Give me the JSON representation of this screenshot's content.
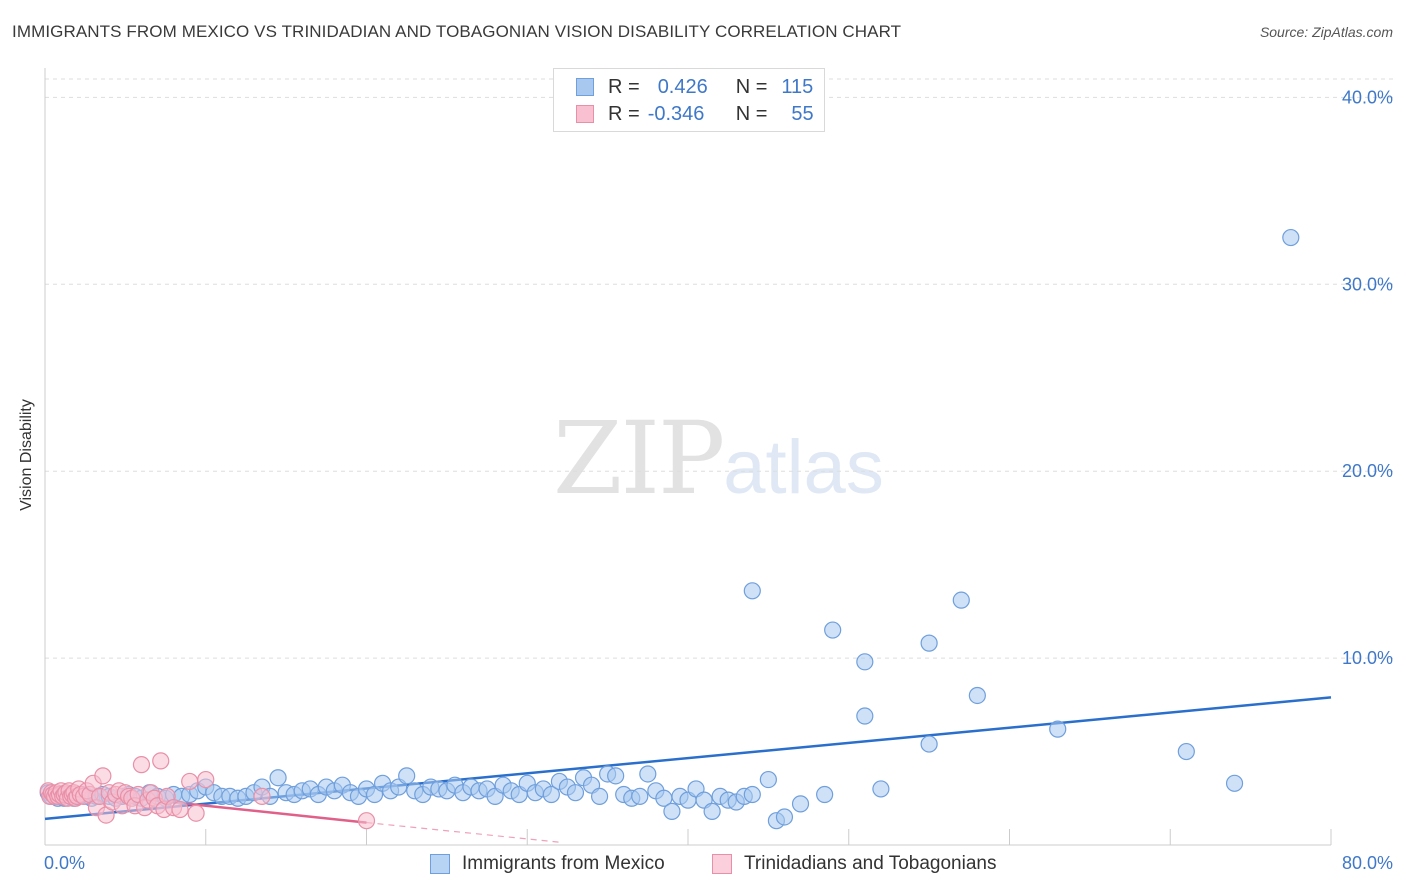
{
  "title": "IMMIGRANTS FROM MEXICO VS TRINIDADIAN AND TOBAGONIAN VISION DISABILITY CORRELATION CHART",
  "source": "Source: ZipAtlas.com",
  "watermark": {
    "zip": "ZIP",
    "atlas": "atlas"
  },
  "legend": {
    "rows": [
      {
        "r_label": "R =",
        "r_value": "0.426",
        "n_label": "N =",
        "n_value": "115",
        "color": "#a8c8f0",
        "border": "#6f9fdc"
      },
      {
        "r_label": "R =",
        "r_value": "-0.346",
        "n_label": "N =",
        "n_value": "55",
        "color": "#f8c0d0",
        "border": "#e890a8"
      }
    ]
  },
  "bottom_legend": [
    {
      "label": "Immigrants from Mexico",
      "color": "#b8d4f4",
      "border": "#6f9fdc"
    },
    {
      "label": "Trinidadians and Tobagonians",
      "color": "#fbd0dc",
      "border": "#e890a8"
    }
  ],
  "chart_data": {
    "type": "scatter",
    "title": "IMMIGRANTS FROM MEXICO VS TRINIDADIAN AND TOBAGONIAN VISION DISABILITY CORRELATION CHART",
    "xlabel": "",
    "ylabel": "Vision Disability",
    "xlim": [
      0,
      80
    ],
    "ylim": [
      0,
      42
    ],
    "y_ticks": [
      10,
      20,
      30,
      40
    ],
    "y_tick_labels": [
      "10.0%",
      "20.0%",
      "30.0%",
      "40.0%"
    ],
    "x_tick_labels": [
      "0.0%",
      "80.0%"
    ],
    "grid": true,
    "series": [
      {
        "name": "Immigrants from Mexico",
        "color": "#a8c8f0",
        "stroke": "#6f9fdc",
        "trend": {
          "x": [
            0,
            80
          ],
          "y": [
            1.4,
            7.9
          ],
          "color": "#2a6fcc"
        },
        "points": [
          [
            0.2,
            2.8
          ],
          [
            0.4,
            2.6
          ],
          [
            0.6,
            2.7
          ],
          [
            0.8,
            2.5
          ],
          [
            1.0,
            2.6
          ],
          [
            1.2,
            2.5
          ],
          [
            1.4,
            2.7
          ],
          [
            1.6,
            2.6
          ],
          [
            1.8,
            2.5
          ],
          [
            2.0,
            2.6
          ],
          [
            2.3,
            2.7
          ],
          [
            2.6,
            2.6
          ],
          [
            2.9,
            2.5
          ],
          [
            3.2,
            2.6
          ],
          [
            3.6,
            2.7
          ],
          [
            4.0,
            2.6
          ],
          [
            4.4,
            2.5
          ],
          [
            4.8,
            2.6
          ],
          [
            5.2,
            2.7
          ],
          [
            5.6,
            2.6
          ],
          [
            6.0,
            2.5
          ],
          [
            6.5,
            2.8
          ],
          [
            7.0,
            2.6
          ],
          [
            7.5,
            2.5
          ],
          [
            8.0,
            2.7
          ],
          [
            8.5,
            2.6
          ],
          [
            9.0,
            2.7
          ],
          [
            9.5,
            2.9
          ],
          [
            10.0,
            3.1
          ],
          [
            10.5,
            2.8
          ],
          [
            11.0,
            2.6
          ],
          [
            11.5,
            2.6
          ],
          [
            12.0,
            2.5
          ],
          [
            12.5,
            2.6
          ],
          [
            13.0,
            2.8
          ],
          [
            13.5,
            3.1
          ],
          [
            14.0,
            2.6
          ],
          [
            14.5,
            3.6
          ],
          [
            15.0,
            2.8
          ],
          [
            15.5,
            2.7
          ],
          [
            16.0,
            2.9
          ],
          [
            16.5,
            3.0
          ],
          [
            17.0,
            2.7
          ],
          [
            17.5,
            3.1
          ],
          [
            18.0,
            2.9
          ],
          [
            18.5,
            3.2
          ],
          [
            19.0,
            2.8
          ],
          [
            19.5,
            2.6
          ],
          [
            20.0,
            3.0
          ],
          [
            20.5,
            2.7
          ],
          [
            21.0,
            3.3
          ],
          [
            21.5,
            2.9
          ],
          [
            22.0,
            3.1
          ],
          [
            22.5,
            3.7
          ],
          [
            23.0,
            2.9
          ],
          [
            23.5,
            2.7
          ],
          [
            24.0,
            3.1
          ],
          [
            24.5,
            3.0
          ],
          [
            25.0,
            2.9
          ],
          [
            25.5,
            3.2
          ],
          [
            26.0,
            2.8
          ],
          [
            26.5,
            3.1
          ],
          [
            27.0,
            2.9
          ],
          [
            27.5,
            3.0
          ],
          [
            28.0,
            2.6
          ],
          [
            28.5,
            3.2
          ],
          [
            29.0,
            2.9
          ],
          [
            29.5,
            2.7
          ],
          [
            30.0,
            3.3
          ],
          [
            30.5,
            2.8
          ],
          [
            31.0,
            3.0
          ],
          [
            31.5,
            2.7
          ],
          [
            32.0,
            3.4
          ],
          [
            32.5,
            3.1
          ],
          [
            33.0,
            2.8
          ],
          [
            33.5,
            3.6
          ],
          [
            34.0,
            3.2
          ],
          [
            34.5,
            2.6
          ],
          [
            35.0,
            3.8
          ],
          [
            35.5,
            3.7
          ],
          [
            36.0,
            2.7
          ],
          [
            36.5,
            2.5
          ],
          [
            37.0,
            2.6
          ],
          [
            37.5,
            3.8
          ],
          [
            38.0,
            2.9
          ],
          [
            38.5,
            2.5
          ],
          [
            39.0,
            1.8
          ],
          [
            39.5,
            2.6
          ],
          [
            40.0,
            2.4
          ],
          [
            40.5,
            3.0
          ],
          [
            41.0,
            2.4
          ],
          [
            41.5,
            1.8
          ],
          [
            42.0,
            2.6
          ],
          [
            42.5,
            2.4
          ],
          [
            43.0,
            2.3
          ],
          [
            43.5,
            2.6
          ],
          [
            44.0,
            2.7
          ],
          [
            45.0,
            3.5
          ],
          [
            45.5,
            1.3
          ],
          [
            46.0,
            1.5
          ],
          [
            44.0,
            13.6
          ],
          [
            49.0,
            11.5
          ],
          [
            51.0,
            9.8
          ],
          [
            55.0,
            10.8
          ],
          [
            57.0,
            13.1
          ],
          [
            58.0,
            8.0
          ],
          [
            63.0,
            6.2
          ],
          [
            71.0,
            5.0
          ],
          [
            51.0,
            6.9
          ],
          [
            55.0,
            5.4
          ],
          [
            77.5,
            32.5
          ],
          [
            74.0,
            3.3
          ],
          [
            52.0,
            3.0
          ],
          [
            47.0,
            2.2
          ],
          [
            48.5,
            2.7
          ]
        ]
      },
      {
        "name": "Trinidadians and Tobagonians",
        "color": "#f8c0d0",
        "stroke": "#e890a8",
        "trend": {
          "x": [
            0,
            20
          ],
          "y": [
            3.0,
            1.2
          ],
          "color": "#e0608a"
        },
        "trend_ext": {
          "x": [
            20,
            32
          ],
          "y": [
            1.2,
            0.15
          ]
        },
        "points": [
          [
            0.2,
            2.9
          ],
          [
            0.3,
            2.6
          ],
          [
            0.4,
            2.8
          ],
          [
            0.5,
            2.7
          ],
          [
            0.6,
            2.6
          ],
          [
            0.7,
            2.8
          ],
          [
            0.8,
            2.6
          ],
          [
            0.9,
            2.7
          ],
          [
            1.0,
            2.9
          ],
          [
            1.1,
            2.6
          ],
          [
            1.2,
            2.7
          ],
          [
            1.3,
            2.8
          ],
          [
            1.4,
            2.5
          ],
          [
            1.5,
            2.9
          ],
          [
            1.6,
            2.6
          ],
          [
            1.7,
            2.7
          ],
          [
            1.8,
            2.8
          ],
          [
            1.9,
            2.5
          ],
          [
            2.0,
            2.6
          ],
          [
            2.1,
            3.0
          ],
          [
            2.2,
            2.7
          ],
          [
            2.4,
            2.6
          ],
          [
            2.6,
            2.9
          ],
          [
            2.8,
            2.7
          ],
          [
            3.0,
            3.3
          ],
          [
            3.2,
            2.0
          ],
          [
            3.4,
            2.6
          ],
          [
            3.6,
            3.7
          ],
          [
            3.8,
            1.6
          ],
          [
            4.0,
            2.8
          ],
          [
            4.2,
            2.3
          ],
          [
            4.4,
            2.7
          ],
          [
            4.6,
            2.9
          ],
          [
            4.8,
            2.1
          ],
          [
            5.0,
            2.8
          ],
          [
            5.2,
            2.6
          ],
          [
            5.4,
            2.5
          ],
          [
            5.6,
            2.1
          ],
          [
            5.8,
            2.7
          ],
          [
            6.0,
            4.3
          ],
          [
            6.2,
            2.0
          ],
          [
            6.4,
            2.4
          ],
          [
            6.6,
            2.8
          ],
          [
            6.8,
            2.5
          ],
          [
            7.0,
            2.1
          ],
          [
            7.2,
            4.5
          ],
          [
            7.4,
            1.9
          ],
          [
            7.6,
            2.6
          ],
          [
            8.0,
            2.0
          ],
          [
            8.4,
            1.9
          ],
          [
            9.0,
            3.4
          ],
          [
            9.4,
            1.7
          ],
          [
            10.0,
            3.5
          ],
          [
            13.5,
            2.6
          ],
          [
            20.0,
            1.3
          ]
        ]
      }
    ]
  }
}
